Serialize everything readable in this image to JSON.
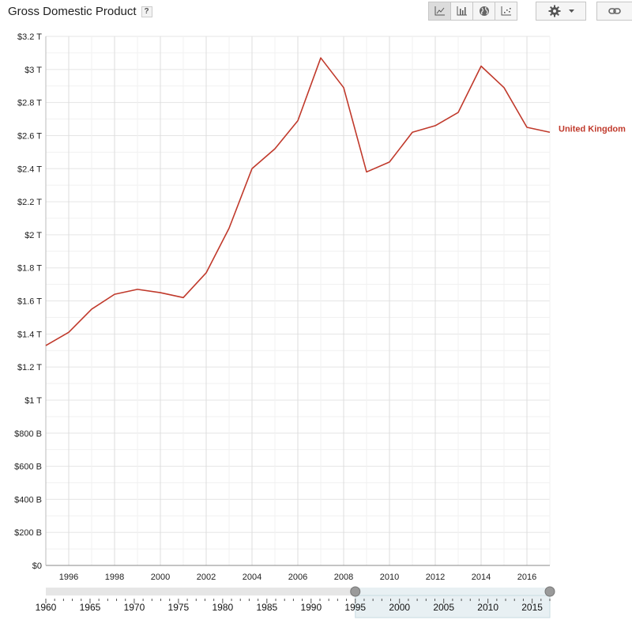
{
  "header": {
    "title": "Gross Domestic Product",
    "help": "?"
  },
  "toolbar": {
    "chart_types": [
      {
        "icon": "line-chart-icon",
        "active": true
      },
      {
        "icon": "bar-chart-icon",
        "active": false
      },
      {
        "icon": "globe-map-icon",
        "active": false
      },
      {
        "icon": "scatter-chart-icon",
        "active": false
      }
    ],
    "settings_icon": "gear-icon",
    "dropdown_icon": "caret-down-icon",
    "link_icon": "link-icon"
  },
  "colors": {
    "series": "#c0392b",
    "grid": "#e5e5e5",
    "axis_text": "#222222",
    "slider_selected": "#e8f0f3"
  },
  "chart_data": {
    "type": "line",
    "title": "Gross Domestic Product",
    "xlim": [
      1995,
      2017
    ],
    "ylim": [
      0,
      3.2
    ],
    "x_ticks": [
      1996,
      1998,
      2000,
      2002,
      2004,
      2006,
      2008,
      2010,
      2012,
      2014,
      2016
    ],
    "y_ticks": [
      {
        "value": 0,
        "label": "$0"
      },
      {
        "value": 0.2,
        "label": "$200 B"
      },
      {
        "value": 0.4,
        "label": "$400 B"
      },
      {
        "value": 0.6,
        "label": "$600 B"
      },
      {
        "value": 0.8,
        "label": "$800 B"
      },
      {
        "value": 1.0,
        "label": "$1 T"
      },
      {
        "value": 1.2,
        "label": "$1.2 T"
      },
      {
        "value": 1.4,
        "label": "$1.4 T"
      },
      {
        "value": 1.6,
        "label": "$1.6 T"
      },
      {
        "value": 1.8,
        "label": "$1.8 T"
      },
      {
        "value": 2.0,
        "label": "$2 T"
      },
      {
        "value": 2.2,
        "label": "$2.2 T"
      },
      {
        "value": 2.4,
        "label": "$2.4 T"
      },
      {
        "value": 2.6,
        "label": "$2.6 T"
      },
      {
        "value": 2.8,
        "label": "$2.8 T"
      },
      {
        "value": 3.0,
        "label": "$3 T"
      },
      {
        "value": 3.2,
        "label": "$3.2 T"
      }
    ],
    "grid": true,
    "series": [
      {
        "name": "United Kingdom",
        "x": [
          1995,
          1996,
          1997,
          1998,
          1999,
          2000,
          2001,
          2002,
          2003,
          2004,
          2005,
          2006,
          2007,
          2008,
          2009,
          2010,
          2011,
          2012,
          2013,
          2014,
          2015,
          2016,
          2017
        ],
        "y": [
          1.33,
          1.41,
          1.55,
          1.64,
          1.67,
          1.65,
          1.62,
          1.77,
          2.04,
          2.4,
          2.52,
          2.69,
          3.07,
          2.89,
          2.38,
          2.44,
          2.62,
          2.66,
          2.74,
          3.02,
          2.89,
          2.65,
          2.62
        ]
      }
    ]
  },
  "time_slider": {
    "range": [
      1960,
      2017
    ],
    "selected": [
      1995,
      2017
    ],
    "labels": [
      1960,
      1965,
      1970,
      1975,
      1980,
      1985,
      1990,
      1995,
      2000,
      2005,
      2010,
      2015
    ]
  }
}
